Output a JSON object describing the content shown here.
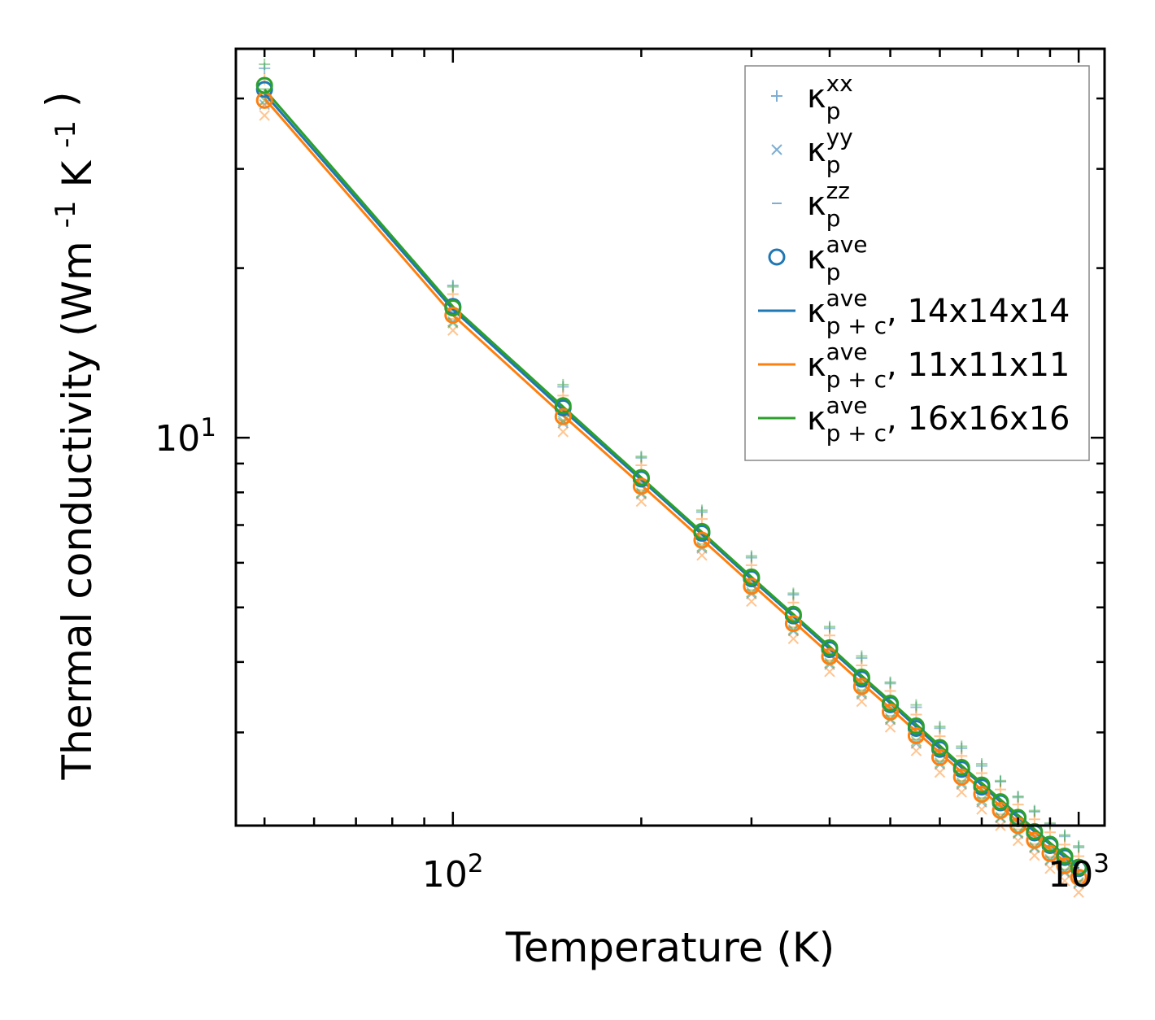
{
  "chart_data": {
    "type": "line",
    "xscale": "log",
    "yscale": "log",
    "xlabel": "Temperature (K)",
    "ylabel": "Thermal conductivity (Wm",
    "ylabel_unit_exponents": [
      "-1",
      "-1"
    ],
    "ylabel_mid": "K",
    "ylabel_close": ")",
    "xlim": [
      45,
      1100
    ],
    "ylim": [
      2.05,
      49
    ],
    "x_major_ticks": [
      {
        "value": 100,
        "base": "10",
        "exp": "2"
      },
      {
        "value": 1000,
        "base": "10",
        "exp": "3"
      }
    ],
    "y_major_ticks": [
      {
        "value": 10,
        "base": "10",
        "exp": "1"
      }
    ],
    "x": [
      50,
      100,
      150,
      200,
      250,
      300,
      350,
      400,
      450,
      500,
      550,
      600,
      650,
      700,
      750,
      800,
      850,
      900,
      950,
      1000
    ],
    "series": [
      {
        "name": "κ_p+c^ave, 14x14x14",
        "mesh": "14x14x14",
        "color": "#1f77b4",
        "kappa_ave": [
          41.5,
          17.1,
          11.3,
          8.45,
          6.77,
          5.62,
          4.83,
          4.21,
          3.73,
          3.36,
          3.05,
          2.8,
          2.58,
          2.4,
          2.25,
          2.11,
          1.99,
          1.89,
          1.8,
          1.72
        ],
        "curve": [
          40.8,
          16.9,
          11.2,
          8.42,
          6.74,
          5.61,
          4.82,
          4.22,
          3.75,
          3.38,
          3.07,
          2.81,
          2.6,
          2.42,
          2.26,
          2.12,
          2.0,
          1.9,
          1.8,
          1.72
        ]
      },
      {
        "name": "κ_p+c^ave, 11x11x11",
        "mesh": "11x11x11",
        "color": "#ff7f0e",
        "kappa_ave": [
          39.7,
          16.5,
          10.9,
          8.2,
          6.58,
          5.45,
          4.68,
          4.09,
          3.62,
          3.26,
          2.96,
          2.71,
          2.5,
          2.33,
          2.18,
          2.05,
          1.93,
          1.83,
          1.74,
          1.66
        ],
        "curve": [
          40.0,
          16.5,
          10.95,
          8.24,
          6.6,
          5.5,
          4.72,
          4.13,
          3.67,
          3.31,
          3.01,
          2.76,
          2.55,
          2.37,
          2.22,
          2.08,
          1.96,
          1.86,
          1.77,
          1.69
        ]
      },
      {
        "name": "κ_p+c^ave, 16x16x16",
        "mesh": "16x16x16",
        "color": "#2ca02c",
        "kappa_ave": [
          42.2,
          17.0,
          11.4,
          8.5,
          6.82,
          5.66,
          4.86,
          4.24,
          3.76,
          3.38,
          3.08,
          2.82,
          2.6,
          2.42,
          2.26,
          2.12,
          2.0,
          1.9,
          1.81,
          1.73
        ],
        "curve": [
          41.5,
          17.1,
          11.35,
          8.5,
          6.8,
          5.66,
          4.86,
          4.26,
          3.78,
          3.41,
          3.1,
          2.84,
          2.62,
          2.44,
          2.28,
          2.14,
          2.02,
          1.91,
          1.82,
          1.74
        ]
      }
    ],
    "component_offsets": {
      "xx": 1.09,
      "yy": 0.94,
      "zz": 0.985
    },
    "legend": {
      "location": "upper right",
      "entries": [
        {
          "symbol": "+",
          "base": "κ",
          "sup": "xx",
          "sub": "p",
          "suffix": ""
        },
        {
          "symbol": "×",
          "base": "κ",
          "sup": "yy",
          "sub": "p",
          "suffix": ""
        },
        {
          "symbol": "–",
          "base": "κ",
          "sup": "zz",
          "sub": "p",
          "suffix": ""
        },
        {
          "symbol": "o",
          "base": "κ",
          "sup": "ave",
          "sub": "p",
          "suffix": "",
          "color": "#1f77b4"
        },
        {
          "symbol": "line",
          "base": "κ",
          "sup": "ave",
          "sub": "p + c",
          "suffix": ", 14x14x14",
          "color": "#1f77b4"
        },
        {
          "symbol": "line",
          "base": "κ",
          "sup": "ave",
          "sub": "p + c",
          "suffix": ", 11x11x11",
          "color": "#ff7f0e"
        },
        {
          "symbol": "line",
          "base": "κ",
          "sup": "ave",
          "sub": "p + c",
          "suffix": ", 16x16x16",
          "color": "#2ca02c"
        }
      ]
    },
    "marker_symbol_color": "#7eaed3",
    "grid": false
  }
}
